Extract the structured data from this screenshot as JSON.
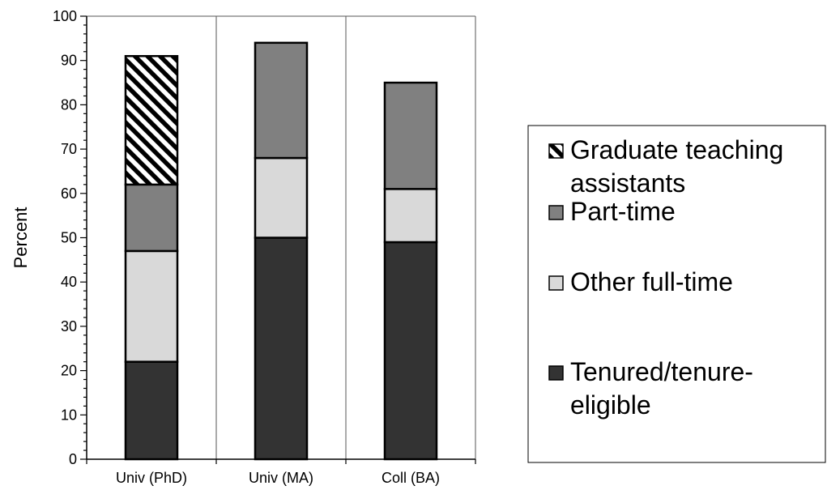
{
  "chart_data": {
    "type": "bar",
    "stacked": true,
    "categories": [
      "Univ (PhD)",
      "Univ (MA)",
      "Coll (BA)"
    ],
    "series": [
      {
        "name": "Tenured/tenure-eligible",
        "values": [
          22,
          50,
          49
        ],
        "color": "#333333",
        "pattern": "solid"
      },
      {
        "name": "Other full-time",
        "values": [
          25,
          18,
          12
        ],
        "color": "#d9d9d9",
        "pattern": "solid"
      },
      {
        "name": "Part-time",
        "values": [
          15,
          26,
          24
        ],
        "color": "#808080",
        "pattern": "solid"
      },
      {
        "name": "Graduate teaching assistants",
        "values": [
          29,
          0,
          0
        ],
        "color": "#000000",
        "pattern": "diagonal-stripes"
      }
    ],
    "ylabel": "Percent",
    "xlabel": "",
    "ylim": [
      0,
      100
    ],
    "ytick_major": [
      0,
      10,
      20,
      30,
      40,
      50,
      60,
      70,
      80,
      90,
      100
    ],
    "ytick_minor_step": 2,
    "grid": false,
    "category_dividers": true,
    "legend": {
      "placement": "right",
      "order": [
        "Graduate teaching assistants",
        "Part-time",
        "Other full-time",
        "Tenured/tenure-eligible"
      ],
      "entries": [
        {
          "series": "Graduate teaching assistants",
          "lines": [
            "Graduate teaching",
            "assistants"
          ]
        },
        {
          "series": "Part-time",
          "lines": [
            "Part-time"
          ]
        },
        {
          "series": "Other full-time",
          "lines": [
            "Other full-time"
          ]
        },
        {
          "series": "Tenured/tenure-eligible",
          "lines": [
            "Tenured/tenure-",
            "eligible"
          ]
        }
      ]
    }
  }
}
